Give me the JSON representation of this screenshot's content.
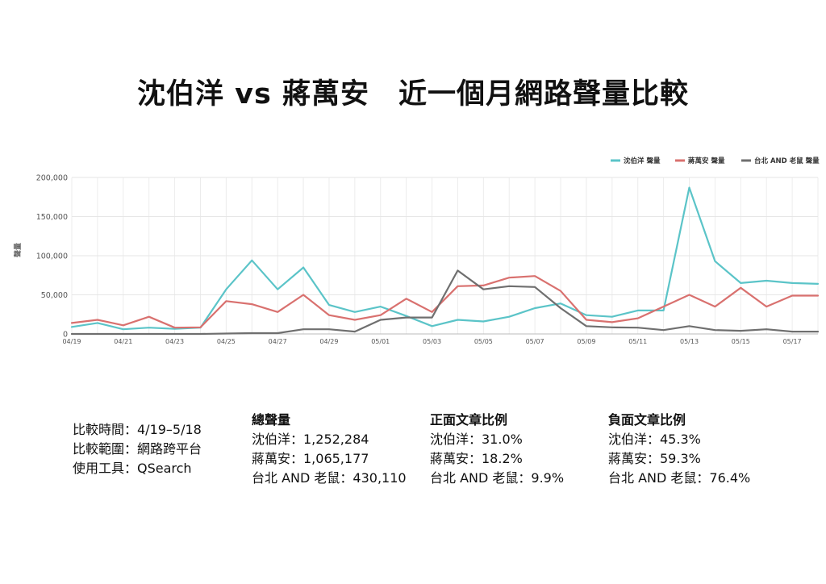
{
  "title": "沈伯洋 vs 蔣萬安　近一個月網路聲量比較",
  "chart_data": {
    "type": "line",
    "ylabel": "聲量",
    "ylim": [
      0,
      200000
    ],
    "yticks": [
      "0",
      "50,000",
      "100,000",
      "150,000",
      "200,000"
    ],
    "grid": true,
    "legend_position": "top-right",
    "x": [
      "04/19",
      "04/20",
      "04/21",
      "04/22",
      "04/23",
      "04/24",
      "04/25",
      "04/26",
      "04/27",
      "04/28",
      "04/29",
      "04/30",
      "05/01",
      "05/02",
      "05/03",
      "05/04",
      "05/05",
      "05/06",
      "05/07",
      "05/08",
      "05/09",
      "05/10",
      "05/11",
      "05/12",
      "05/13",
      "05/14",
      "05/15",
      "05/16",
      "05/17",
      "05/18"
    ],
    "xtick_labels": [
      "04/19",
      "04/21",
      "04/23",
      "04/25",
      "04/27",
      "04/29",
      "05/01",
      "05/03",
      "05/05",
      "05/07",
      "05/09",
      "05/11",
      "05/13",
      "05/15",
      "05/17"
    ],
    "series": [
      {
        "name": "沈伯洋 聲量",
        "color": "#5bc4c8",
        "values": [
          9000,
          14000,
          6000,
          8000,
          6500,
          8000,
          57000,
          94000,
          57000,
          85000,
          37000,
          28000,
          35000,
          23000,
          10000,
          18000,
          16000,
          22000,
          33000,
          39000,
          24000,
          22000,
          30000,
          30000,
          187000,
          93000,
          65000,
          68000,
          65000,
          64000
        ]
      },
      {
        "name": "蔣萬安 聲量",
        "color": "#d9716f",
        "values": [
          14000,
          18000,
          11000,
          22000,
          8000,
          8500,
          42000,
          38000,
          28000,
          50000,
          24000,
          18000,
          24000,
          45000,
          28000,
          61000,
          62000,
          72000,
          74000,
          55000,
          18000,
          15000,
          20000,
          35000,
          50000,
          35000,
          59000,
          35000,
          49000,
          49000
        ]
      },
      {
        "name": "台北 AND 老鼠 聲量",
        "color": "#6f6f6f",
        "values": [
          0,
          0,
          0,
          0,
          0,
          0,
          500,
          1000,
          1000,
          6000,
          6000,
          3000,
          18000,
          21000,
          21000,
          81000,
          57000,
          61000,
          60000,
          33000,
          10000,
          8500,
          8000,
          5000,
          10000,
          5000,
          4000,
          6000,
          3000,
          3000
        ]
      }
    ]
  },
  "info": {
    "time": "比較時間：4/19–5/18",
    "scope": "比較範圍：網路跨平台",
    "tool": "使用工具：QSearch",
    "volume": {
      "heading": "總聲量",
      "lines": [
        "沈伯洋：1,252,284",
        "蔣萬安：1,065,177",
        "台北 AND 老鼠：430,110"
      ]
    },
    "positive": {
      "heading": "正面文章比例",
      "lines": [
        "沈伯洋：31.0%",
        "蔣萬安：18.2%",
        "台北 AND 老鼠：9.9%"
      ]
    },
    "negative": {
      "heading": "負面文章比例",
      "lines": [
        "沈伯洋：45.3%",
        "蔣萬安：59.3%",
        "台北 AND 老鼠：76.4%"
      ]
    }
  }
}
